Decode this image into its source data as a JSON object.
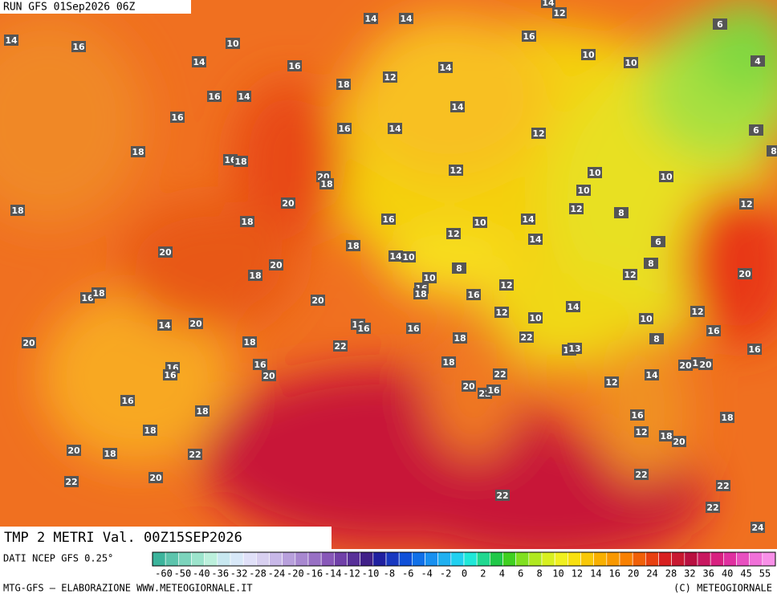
{
  "header": {
    "run": "RUN GFS 01Sep2026 06Z"
  },
  "map": {
    "title": "TMP 2 METRI Val. 00Z15SEP2026",
    "labels": [
      14,
      16,
      14,
      14,
      14,
      12,
      16,
      6,
      10,
      14,
      16,
      14,
      12,
      10,
      10,
      4,
      18,
      16,
      14,
      16,
      14,
      16,
      14,
      12,
      6,
      18,
      16,
      18,
      8,
      20,
      18,
      12,
      10,
      10,
      10,
      20,
      18,
      12,
      8,
      12,
      16,
      18,
      10,
      14,
      12,
      6,
      18,
      14,
      20,
      14,
      10,
      8,
      20,
      18,
      8,
      10,
      12,
      20,
      16,
      18,
      16,
      18,
      12,
      16,
      20,
      14,
      12,
      10,
      12,
      10,
      14,
      20,
      16,
      16,
      16,
      16,
      22,
      18,
      8,
      20,
      18,
      22,
      18,
      13,
      16,
      16,
      16,
      16,
      18,
      12,
      20,
      20,
      22,
      20,
      14,
      12,
      20,
      22,
      16,
      16,
      18,
      18,
      16,
      12,
      18,
      20,
      18,
      20,
      18,
      22,
      20,
      22,
      22,
      22,
      22,
      22,
      24
    ]
  },
  "legend": {
    "source": "DATI NCEP GFS 0.25°",
    "ticks": [
      -60,
      -50,
      -40,
      -36,
      -32,
      -28,
      -24,
      -20,
      -16,
      -14,
      -12,
      -10,
      -8,
      -6,
      -4,
      -2,
      0,
      2,
      4,
      6,
      8,
      10,
      12,
      14,
      16,
      20,
      24,
      28,
      32,
      36,
      40,
      45,
      55
    ],
    "colors": [
      "#3cb49c",
      "#5cc4ac",
      "#7cd4bc",
      "#9ce4cc",
      "#bcf0dc",
      "#c8e8f0",
      "#d8e8f8",
      "#e0e0f8",
      "#d8d0f0",
      "#c8b8e8",
      "#b8a0dc",
      "#a888d0",
      "#9870c4",
      "#8858b8",
      "#7040a8",
      "#583098",
      "#402088",
      "#2020a0",
      "#1838c0",
      "#1050d8",
      "#1070e8",
      "#1890f0",
      "#20b0f0",
      "#20d0f0",
      "#20e8d8",
      "#20d890",
      "#20c848",
      "#40d020",
      "#80e020",
      "#b0e820",
      "#d8f020",
      "#f0f020",
      "#f8e010",
      "#f8c808",
      "#f8b000",
      "#f89800",
      "#f88000",
      "#f06008",
      "#e84010",
      "#d82020",
      "#c81830",
      "#b81040",
      "#c81860",
      "#d82080",
      "#e030a0",
      "#e850c0",
      "#f070d8",
      "#f890e8"
    ]
  },
  "footer": {
    "left": "MTG-GFS — ELABORAZIONE WWW.METEOGIORNALE.IT",
    "right": "(C) METEOGIORNALE"
  }
}
